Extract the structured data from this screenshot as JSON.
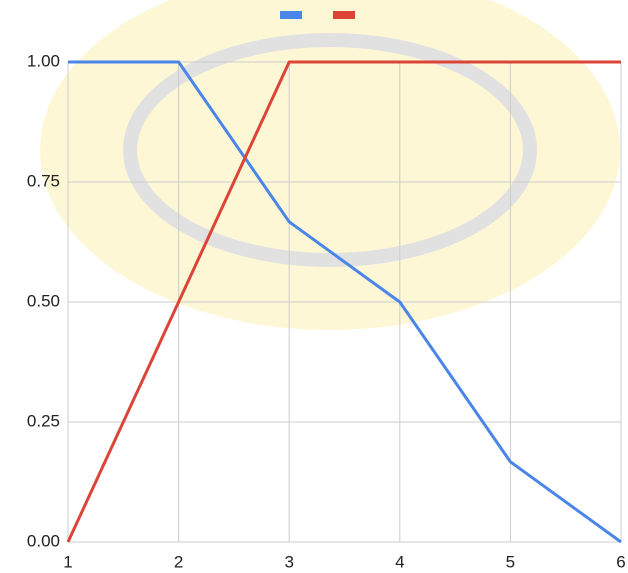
{
  "chart_data": {
    "type": "line",
    "x": [
      1,
      2,
      3,
      4,
      5,
      6
    ],
    "series": [
      {
        "color": "#4a86e8",
        "values": [
          1,
          1,
          0.667,
          0.5,
          0.167,
          0
        ]
      },
      {
        "color": "#db4437",
        "values": [
          0,
          0.5,
          1,
          1,
          1,
          1
        ]
      }
    ],
    "xlim": [
      1,
      6
    ],
    "xticks": [
      1,
      2,
      3,
      4,
      5,
      6
    ],
    "ylim": [
      0,
      1
    ],
    "yticks": [
      {
        "value": 0,
        "label": "0.00"
      },
      {
        "value": 0.25,
        "label": "0.25"
      },
      {
        "value": 0.5,
        "label": "0.50"
      },
      {
        "value": 0.75,
        "label": "0.75"
      },
      {
        "value": 1,
        "label": "1.00"
      }
    ],
    "grid": true
  }
}
